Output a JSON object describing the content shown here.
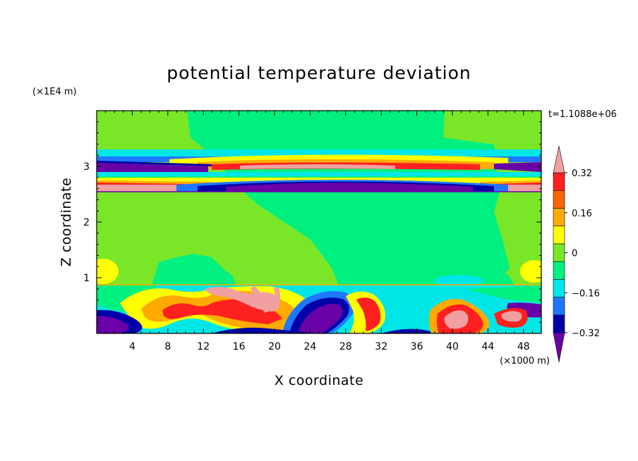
{
  "chart_data": {
    "type": "heatmap",
    "title": "potential temperature deviation",
    "xlabel": "X coordinate",
    "ylabel": "Z coordinate",
    "x_unit": "(×1000 m)",
    "y_unit": "(×1E4 m)",
    "time_label": "t=1.1088e+06",
    "xlim": [
      0,
      50
    ],
    "ylim": [
      0,
      4
    ],
    "x_ticks": [
      4,
      8,
      12,
      16,
      20,
      24,
      28,
      32,
      36,
      40,
      44,
      48
    ],
    "y_ticks": [
      1,
      2,
      3
    ],
    "colorbar": {
      "labels": [
        "0.32",
        "0.16",
        "0",
        "−0.16",
        "−0.32"
      ],
      "label_values": [
        0.32,
        0.16,
        0,
        -0.16,
        -0.32
      ],
      "levels": [
        -0.4,
        -0.32,
        -0.24,
        -0.16,
        -0.08,
        0,
        0.08,
        0.16,
        0.24,
        0.32,
        0.4
      ],
      "colors": [
        "#6a00a8",
        "#0000aa",
        "#1e78ff",
        "#00e6e6",
        "#00f080",
        "#7ae628",
        "#ffff00",
        "#ffaa00",
        "#ff6400",
        "#ff2020",
        "#f0a0a0"
      ],
      "extend": "both"
    },
    "regions": {
      "background": {
        "value": 0.06
      },
      "background_centre": {
        "value": -0.03,
        "x_range": [
          20,
          44
        ],
        "z_range": [
          0.9,
          3.3
        ]
      },
      "upper_bands_z": [
        2.55,
        3.3
      ],
      "boundary_layer_z": [
        0,
        0.88
      ]
    }
  }
}
